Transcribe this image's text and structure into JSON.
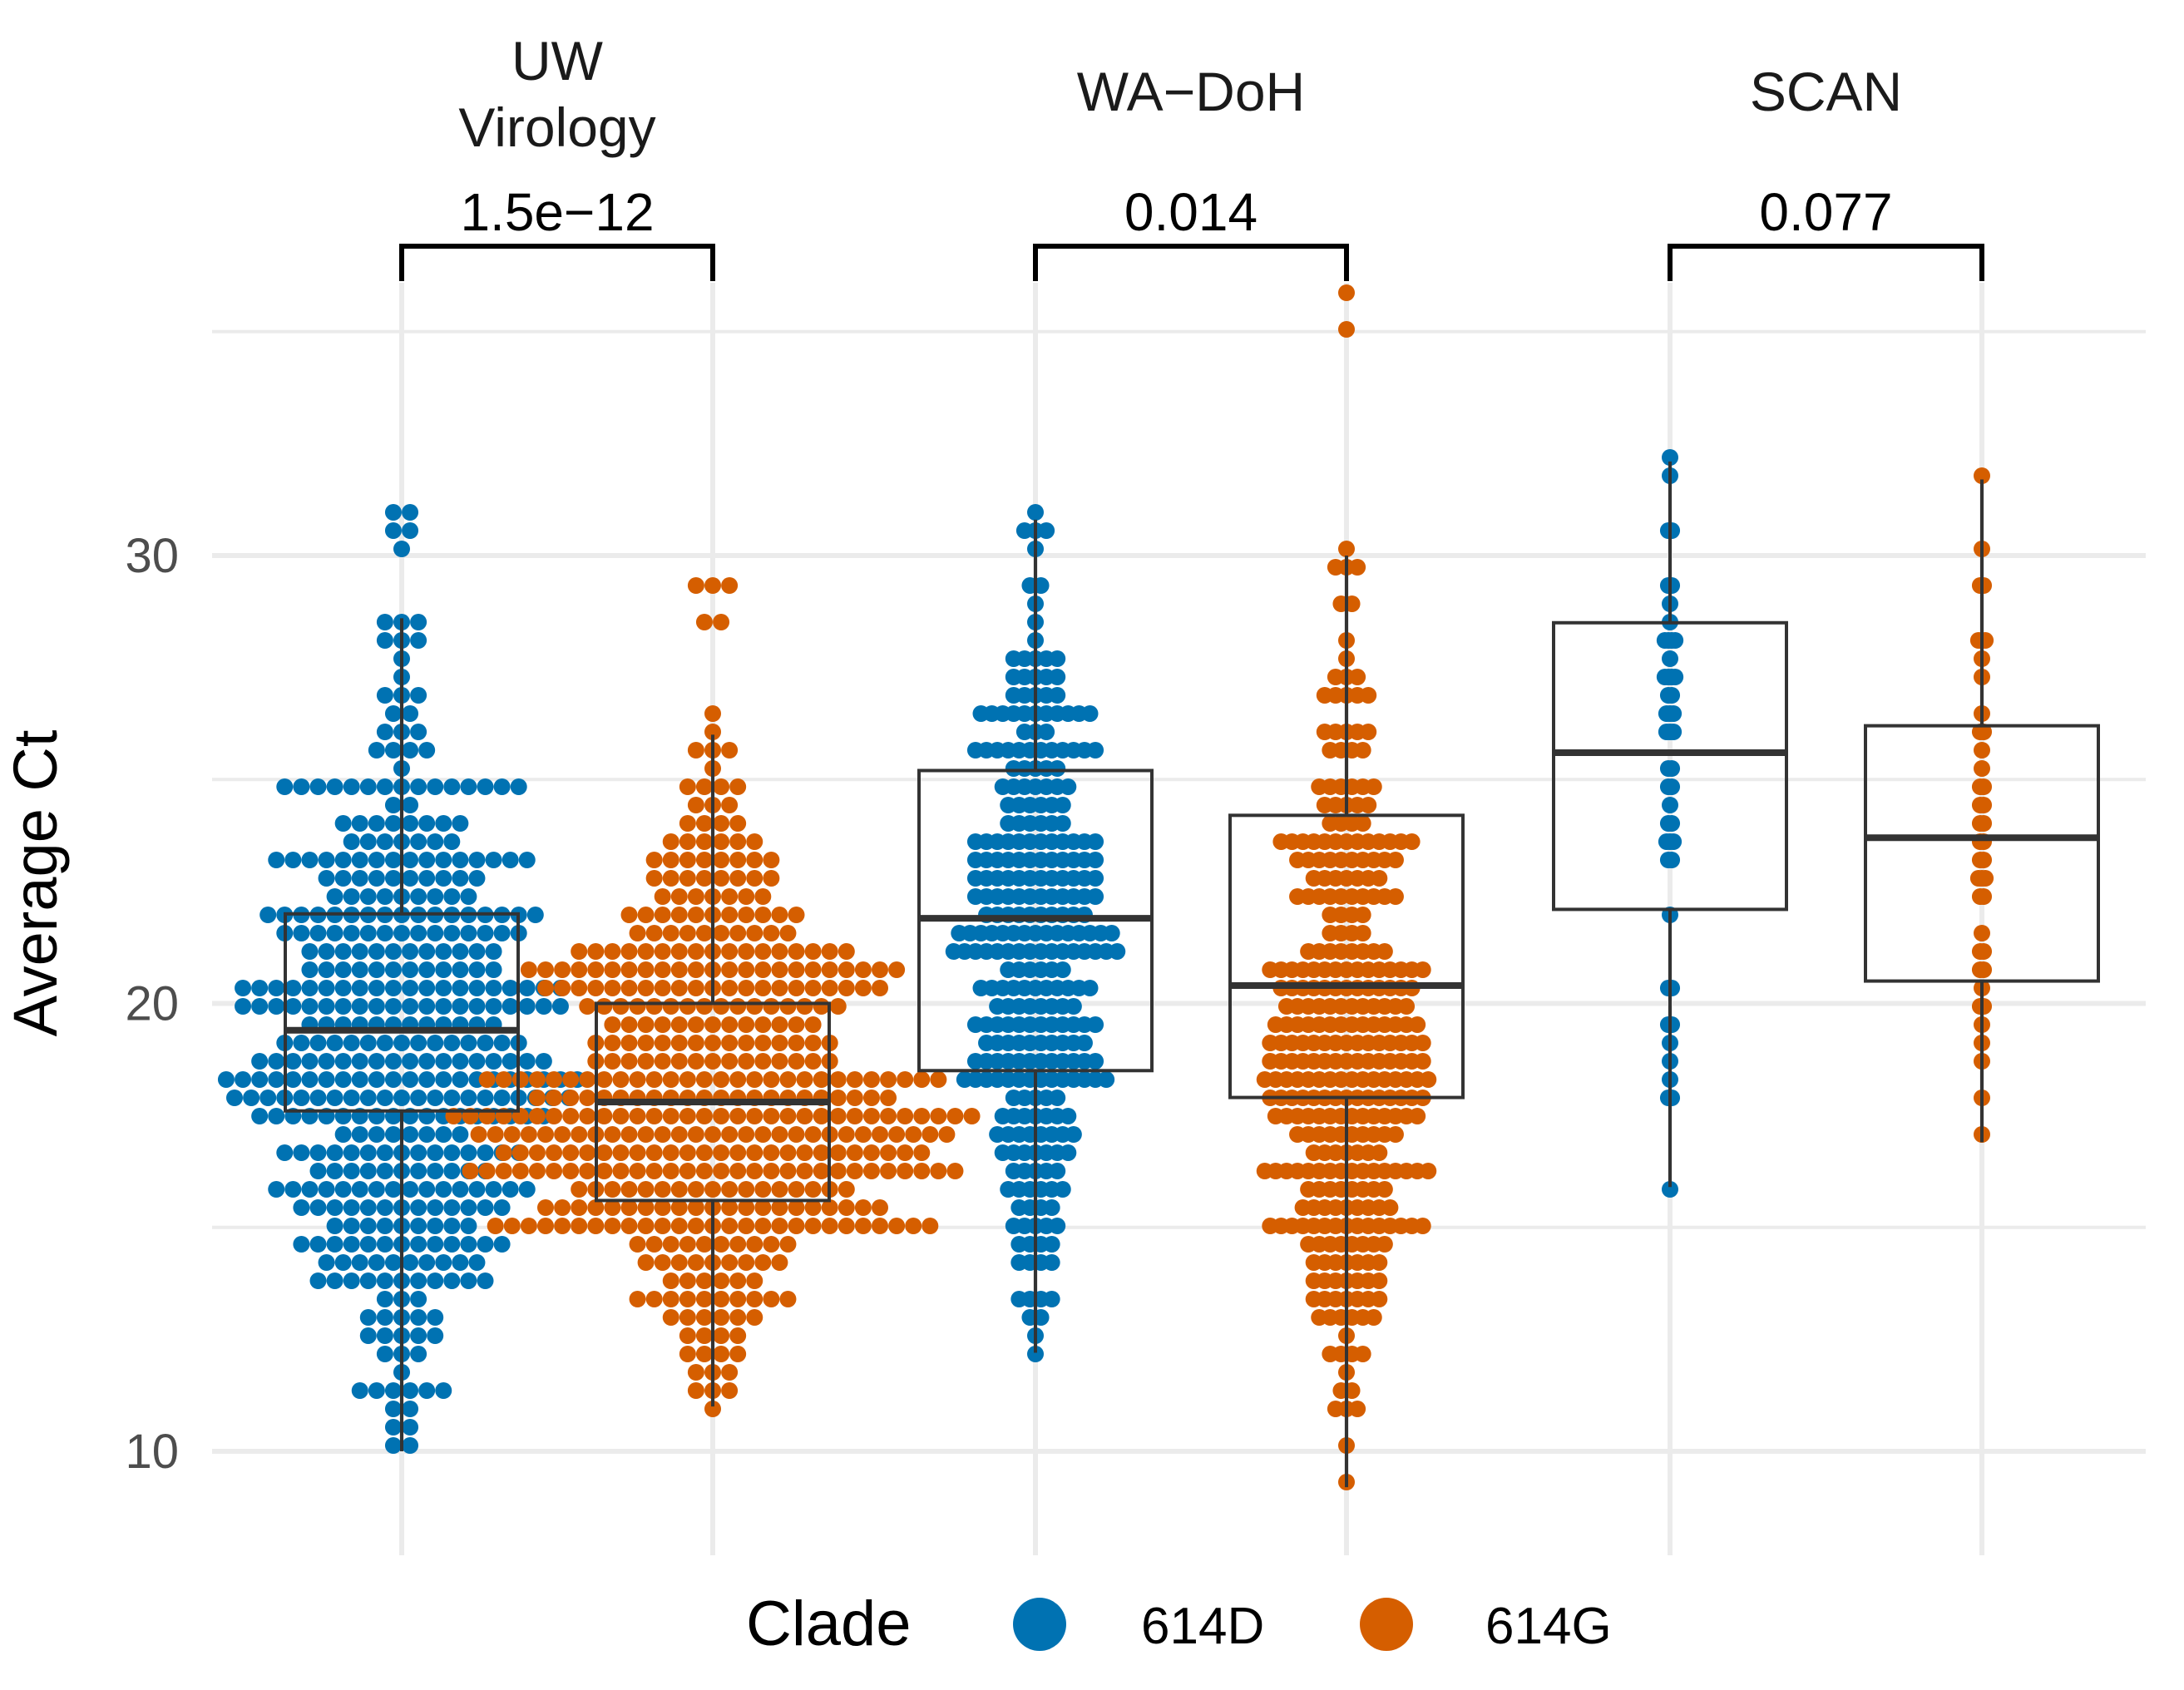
{
  "chart_data": {
    "type": "scatter",
    "subtype": "beeswarm with boxplots",
    "ylabel": "Average Ct",
    "xlabel": "",
    "ylim": [
      7.6,
      36.8
    ],
    "y_ticks": [
      10,
      20,
      30
    ],
    "grid": true,
    "legend": {
      "title": "Clade",
      "position": "bottom"
    },
    "colors": {
      "614D": "#0072B2",
      "614G": "#D55E00"
    },
    "series": [
      {
        "name": "614D",
        "color": "#0072B2"
      },
      {
        "name": "614G",
        "color": "#D55E00"
      }
    ],
    "facets": [
      {
        "label": "UW\nVirology",
        "label_lines": [
          "UW",
          "Virology"
        ],
        "p_value": "1.5e−12",
        "groups": [
          {
            "clade": "614D",
            "n": 430,
            "box": {
              "whisker_low": 10.0,
              "q1": 17.6,
              "median": 19.4,
              "q3": 22.0,
              "whisker_high": 28.6
            },
            "outliers": [
              31.0,
              31.0,
              30.6,
              30.6,
              30.0,
              28.6,
              28.6,
              27.0,
              26.5,
              10.0
            ],
            "spread": 1.0,
            "mode": 18.8
          },
          {
            "clade": "614G",
            "n": 480,
            "box": {
              "whisker_low": 11.0,
              "q1": 15.6,
              "median": 17.8,
              "q3": 20.0,
              "whisker_high": 26.0
            },
            "outliers": [
              29.3,
              29.3,
              29.3,
              28.5,
              28.5,
              26.5
            ],
            "spread": 1.0,
            "mode": 17.6
          }
        ]
      },
      {
        "label": "WA−DoH",
        "label_lines": [
          "WA−DoH"
        ],
        "p_value": "0.014",
        "groups": [
          {
            "clade": "614D",
            "n": 300,
            "box": {
              "whisker_low": 12.2,
              "q1": 18.5,
              "median": 21.9,
              "q3": 25.2,
              "whisker_high": 30.8
            },
            "outliers": [],
            "spread": 0.65,
            "mode": 21.0
          },
          {
            "clade": "614G",
            "n": 340,
            "box": {
              "whisker_low": 9.2,
              "q1": 17.9,
              "median": 20.4,
              "q3": 24.2,
              "whisker_high": 30.0
            },
            "outliers": [
              35.0,
              35.8
            ],
            "spread": 0.65,
            "mode": 18.6
          }
        ]
      },
      {
        "label": "SCAN",
        "label_lines": [
          "SCAN"
        ],
        "p_value": "0.077",
        "groups": [
          {
            "clade": "614D",
            "n": 48,
            "box": {
              "whisker_low": 15.9,
              "q1": 22.1,
              "median": 25.6,
              "q3": 28.5,
              "whisker_high": 32.1
            },
            "outliers": [],
            "spread": 0.2,
            "mode": 25.0
          },
          {
            "clade": "614G",
            "n": 42,
            "box": {
              "whisker_low": 16.9,
              "q1": 20.5,
              "median": 23.7,
              "q3": 26.2,
              "whisker_high": 31.7
            },
            "outliers": [],
            "spread": 0.2,
            "mode": 23.0
          }
        ]
      }
    ]
  }
}
